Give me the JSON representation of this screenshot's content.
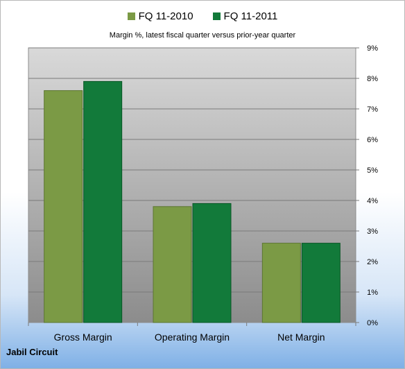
{
  "chart_data": {
    "type": "bar",
    "title": "",
    "subtitle": "Margin %, latest fiscal quarter versus prior-year quarter",
    "categories": [
      "Gross Margin",
      "Operating Margin",
      "Net Margin"
    ],
    "series": [
      {
        "name": "FQ 11-2010",
        "values": [
          7.6,
          3.8,
          2.6
        ],
        "color": "#7b9a45"
      },
      {
        "name": "FQ 11-2011",
        "values": [
          7.9,
          3.9,
          2.6
        ],
        "color": "#127a3a"
      }
    ],
    "ylim": [
      0,
      9
    ],
    "yticks": [
      "0%",
      "1%",
      "2%",
      "3%",
      "4%",
      "5%",
      "6%",
      "7%",
      "8%",
      "9%"
    ],
    "y_axis_side": "right",
    "grid": true,
    "legend_position": "top"
  },
  "footer_label": "Jabil Circuit"
}
